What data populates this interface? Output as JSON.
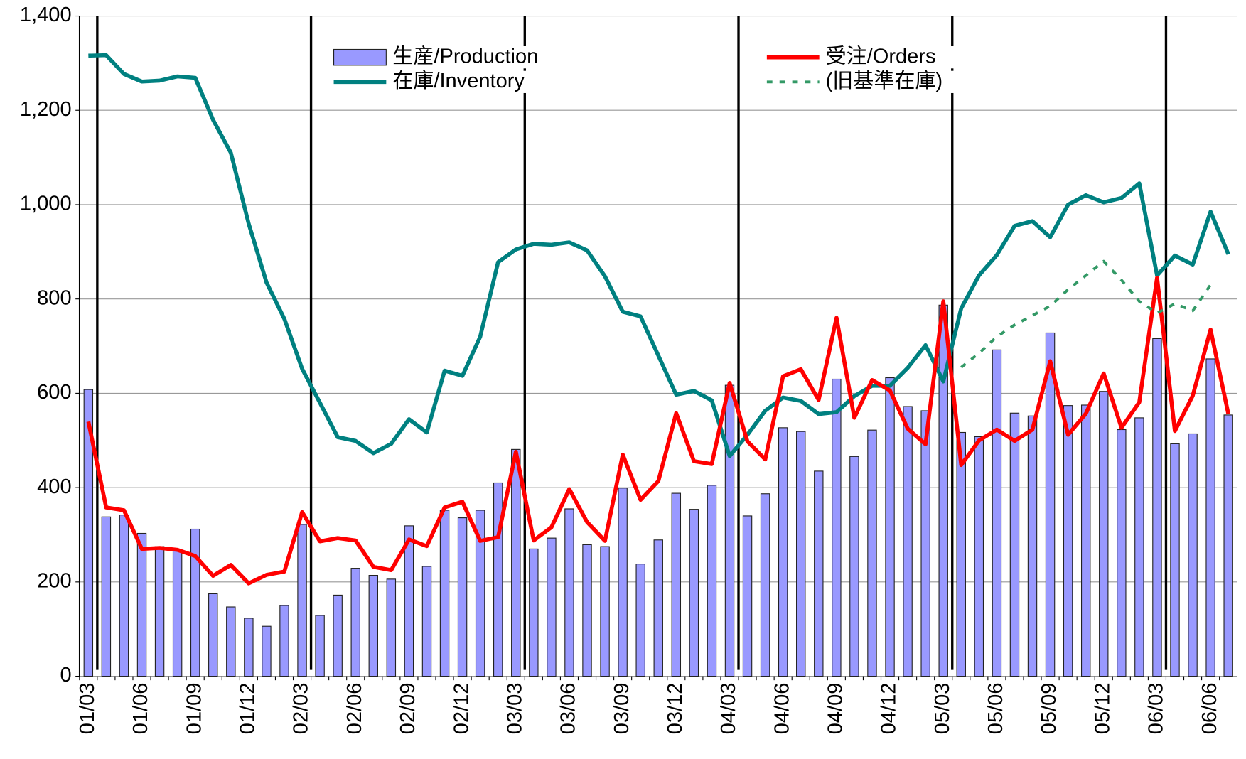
{
  "chart_data": {
    "type": "combo",
    "categories": [
      "01/03",
      null,
      null,
      "01/06",
      null,
      null,
      "01/09",
      null,
      null,
      "01/12",
      null,
      null,
      "02/03",
      null,
      null,
      "02/06",
      null,
      null,
      "02/09",
      null,
      null,
      "02/12",
      null,
      null,
      "03/03",
      null,
      null,
      "03/06",
      null,
      null,
      "03/09",
      null,
      null,
      "03/12",
      null,
      null,
      "04/03",
      null,
      null,
      "04/06",
      null,
      null,
      "04/09",
      null,
      null,
      "04/12",
      null,
      null,
      "05/03",
      null,
      null,
      "05/06",
      null,
      null,
      "05/09",
      null,
      null,
      "05/12",
      null,
      null,
      "06/03",
      null,
      null,
      "06/06",
      null
    ],
    "series": [
      {
        "name": "生産/Production",
        "type": "bar",
        "color": "#9999ff",
        "values": [
          608,
          338,
          342,
          303,
          275,
          268,
          312,
          175,
          147,
          123,
          106,
          150,
          322,
          129,
          172,
          229,
          214,
          206,
          319,
          233,
          352,
          336,
          352,
          410,
          481,
          270,
          293,
          355,
          279,
          275,
          399,
          238,
          289,
          388,
          354,
          405,
          617,
          340,
          387,
          527,
          519,
          435,
          630,
          466,
          522,
          633,
          572,
          563,
          787,
          517,
          508,
          692,
          558,
          552,
          728,
          574,
          575,
          604,
          523,
          548,
          716,
          493,
          514,
          673,
          554
        ]
      },
      {
        "name": "在庫/Inventory",
        "type": "line",
        "color": "#008080",
        "line_style": "solid",
        "values": [
          1316,
          1317,
          1277,
          1261,
          1263,
          1272,
          1269,
          1180,
          1110,
          960,
          835,
          758,
          652,
          580,
          507,
          499,
          473,
          493,
          545,
          517,
          648,
          637,
          720,
          878,
          905,
          917,
          915,
          920,
          903,
          848,
          773,
          763,
          680,
          597,
          605,
          585,
          467,
          512,
          563,
          591,
          584,
          556,
          560,
          594,
          616,
          616,
          654,
          702,
          625,
          780,
          850,
          893,
          955,
          965,
          931,
          1000,
          1020,
          1005,
          1014,
          1045,
          850,
          892,
          873,
          985,
          895
        ]
      },
      {
        "name": "受注/Orders",
        "type": "line",
        "color": "#ff0000",
        "line_style": "solid",
        "values": [
          540,
          358,
          352,
          270,
          272,
          268,
          255,
          213,
          236,
          197,
          215,
          222,
          348,
          286,
          293,
          288,
          232,
          225,
          290,
          276,
          358,
          370,
          287,
          295,
          476,
          288,
          316,
          397,
          327,
          287,
          470,
          374,
          414,
          558,
          456,
          450,
          622,
          498,
          460,
          636,
          651,
          586,
          760,
          548,
          628,
          606,
          525,
          492,
          795,
          448,
          500,
          523,
          499,
          523,
          668,
          512,
          557,
          642,
          527,
          581,
          845,
          520,
          595,
          735,
          556
        ]
      },
      {
        "name": "(旧基準在庫)",
        "type": "line",
        "color": "#339966",
        "line_style": "dotted",
        "values": [
          null,
          null,
          null,
          null,
          null,
          null,
          null,
          null,
          null,
          null,
          null,
          null,
          null,
          null,
          null,
          null,
          null,
          null,
          null,
          null,
          null,
          null,
          null,
          null,
          null,
          null,
          null,
          null,
          null,
          null,
          null,
          null,
          null,
          null,
          null,
          null,
          null,
          null,
          null,
          null,
          null,
          null,
          null,
          null,
          null,
          null,
          null,
          null,
          null,
          655,
          685,
          720,
          745,
          765,
          785,
          820,
          850,
          880,
          840,
          795,
          770,
          790,
          775,
          830,
          null
        ]
      }
    ],
    "ylim": [
      0,
      1400
    ],
    "yticks": [
      0,
      200,
      400,
      600,
      800,
      {
        "value": 1000,
        "label": "1,000"
      },
      {
        "value": 1200,
        "label": "1,200"
      },
      {
        "value": 1400,
        "label": "1,400"
      }
    ],
    "grid": true
  }
}
